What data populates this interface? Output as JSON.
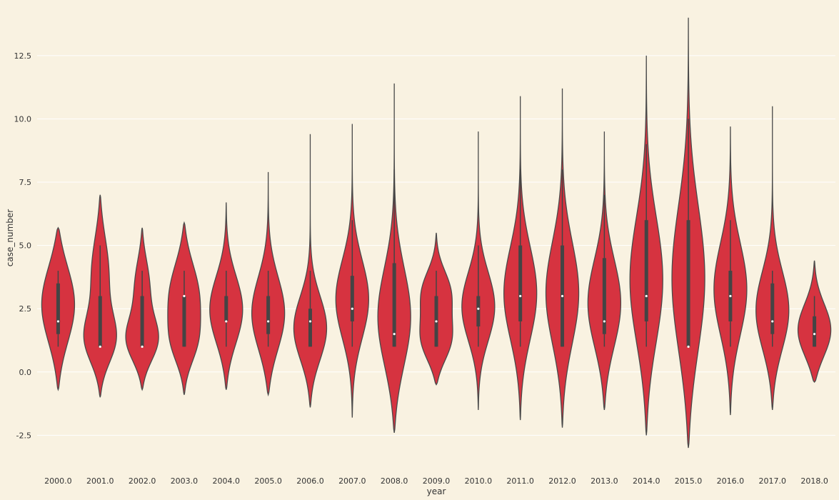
{
  "chart_data": {
    "type": "violin",
    "xlabel": "year",
    "ylabel": "case_number",
    "ylim": [
      -3.9,
      14.5
    ],
    "yticks": [
      -2.5,
      0.0,
      2.5,
      5.0,
      7.5,
      10.0,
      12.5
    ],
    "ytick_labels": [
      "-2.5",
      "0.0",
      "2.5",
      "5.0",
      "7.5",
      "10.0",
      "12.5"
    ],
    "grid": true,
    "colors": {
      "background": "#f9f2e1",
      "violin_fill": "#d63340",
      "violin_edge": "#4a4a4a",
      "box": "#444444",
      "median": "#ffffff",
      "grid": "#ffffff"
    },
    "categories": [
      "2000.0",
      "2001.0",
      "2002.0",
      "2003.0",
      "2004.0",
      "2005.0",
      "2006.0",
      "2007.0",
      "2008.0",
      "2009.0",
      "2010.0",
      "2011.0",
      "2012.0",
      "2013.0",
      "2014.0",
      "2015.0",
      "2016.0",
      "2017.0",
      "2018.0"
    ],
    "violins": [
      {
        "min": -0.7,
        "max": 5.7,
        "q1": 1.5,
        "median": 2.0,
        "q3": 3.5,
        "wlo": 1.0,
        "whi": 4.0,
        "modes": [
          [
            2.7,
            1.6,
            1.0
          ]
        ]
      },
      {
        "min": -1.0,
        "max": 7.0,
        "q1": 1.0,
        "median": 1.0,
        "q3": 3.0,
        "wlo": 1.0,
        "whi": 5.0,
        "modes": [
          [
            1.2,
            1.0,
            1.0
          ],
          [
            4.0,
            1.5,
            0.55
          ]
        ]
      },
      {
        "min": -0.7,
        "max": 5.7,
        "q1": 1.0,
        "median": 1.0,
        "q3": 3.0,
        "wlo": 1.0,
        "whi": 4.0,
        "modes": [
          [
            1.2,
            0.9,
            1.0
          ],
          [
            3.5,
            1.1,
            0.45
          ]
        ]
      },
      {
        "min": -0.9,
        "max": 5.9,
        "q1": 1.0,
        "median": 3.0,
        "q3": 3.0,
        "wlo": 1.0,
        "whi": 4.0,
        "modes": [
          [
            3.0,
            1.4,
            1.0
          ],
          [
            1.0,
            0.9,
            0.6
          ]
        ]
      },
      {
        "min": -0.7,
        "max": 6.7,
        "q1": 2.0,
        "median": 2.0,
        "q3": 3.0,
        "wlo": 1.0,
        "whi": 4.0,
        "modes": [
          [
            2.4,
            1.4,
            1.0
          ]
        ]
      },
      {
        "min": -0.9,
        "max": 7.9,
        "q1": 1.5,
        "median": 2.0,
        "q3": 3.0,
        "wlo": 1.0,
        "whi": 4.0,
        "modes": [
          [
            2.2,
            1.5,
            1.0
          ]
        ]
      },
      {
        "min": -1.4,
        "max": 9.4,
        "q1": 1.0,
        "median": 2.0,
        "q3": 2.5,
        "wlo": 1.0,
        "whi": 4.0,
        "modes": [
          [
            1.6,
            1.3,
            1.0
          ]
        ]
      },
      {
        "min": -1.8,
        "max": 9.8,
        "q1": 2.0,
        "median": 2.5,
        "q3": 3.8,
        "wlo": 1.0,
        "whi": 6.0,
        "modes": [
          [
            2.8,
            1.6,
            1.0
          ]
        ]
      },
      {
        "min": -2.4,
        "max": 11.4,
        "q1": 1.0,
        "median": 1.5,
        "q3": 4.3,
        "wlo": 1.0,
        "whi": 8.0,
        "modes": [
          [
            2.0,
            2.0,
            1.0
          ]
        ]
      },
      {
        "min": -0.5,
        "max": 5.5,
        "q1": 1.0,
        "median": 2.0,
        "q3": 3.0,
        "wlo": 1.0,
        "whi": 4.0,
        "modes": [
          [
            1.2,
            0.9,
            1.0
          ],
          [
            3.2,
            0.9,
            0.9
          ]
        ]
      },
      {
        "min": -1.5,
        "max": 9.5,
        "q1": 1.8,
        "median": 2.5,
        "q3": 3.0,
        "wlo": 1.0,
        "whi": 5.0,
        "modes": [
          [
            2.5,
            1.4,
            1.0
          ]
        ]
      },
      {
        "min": -1.9,
        "max": 10.9,
        "q1": 2.0,
        "median": 3.0,
        "q3": 5.0,
        "wlo": 1.0,
        "whi": 8.0,
        "modes": [
          [
            3.0,
            1.9,
            1.0
          ]
        ]
      },
      {
        "min": -2.2,
        "max": 11.2,
        "q1": 1.0,
        "median": 3.0,
        "q3": 5.0,
        "wlo": 1.0,
        "whi": 8.0,
        "modes": [
          [
            3.0,
            2.1,
            1.0
          ]
        ]
      },
      {
        "min": -1.5,
        "max": 9.5,
        "q1": 1.5,
        "median": 2.0,
        "q3": 4.5,
        "wlo": 1.0,
        "whi": 7.0,
        "modes": [
          [
            2.6,
            1.8,
            1.0
          ]
        ]
      },
      {
        "min": -2.5,
        "max": 12.5,
        "q1": 2.0,
        "median": 3.0,
        "q3": 6.0,
        "wlo": 1.0,
        "whi": 9.0,
        "modes": [
          [
            3.5,
            2.6,
            1.0
          ]
        ]
      },
      {
        "min": -3.0,
        "max": 14.0,
        "q1": 1.0,
        "median": 1.0,
        "q3": 6.0,
        "wlo": 1.0,
        "whi": 10.0,
        "modes": [
          [
            3.5,
            3.0,
            1.0
          ]
        ]
      },
      {
        "min": -1.7,
        "max": 9.7,
        "q1": 2.0,
        "median": 3.0,
        "q3": 4.0,
        "wlo": 1.0,
        "whi": 6.0,
        "modes": [
          [
            3.2,
            1.9,
            1.0
          ]
        ]
      },
      {
        "min": -1.5,
        "max": 10.5,
        "q1": 1.5,
        "median": 2.0,
        "q3": 3.5,
        "wlo": 1.0,
        "whi": 4.0,
        "modes": [
          [
            2.3,
            1.6,
            1.0
          ]
        ]
      },
      {
        "min": -0.4,
        "max": 4.4,
        "q1": 1.0,
        "median": 1.5,
        "q3": 2.2,
        "wlo": 1.0,
        "whi": 3.0,
        "modes": [
          [
            1.6,
            1.1,
            1.0
          ]
        ]
      }
    ]
  }
}
